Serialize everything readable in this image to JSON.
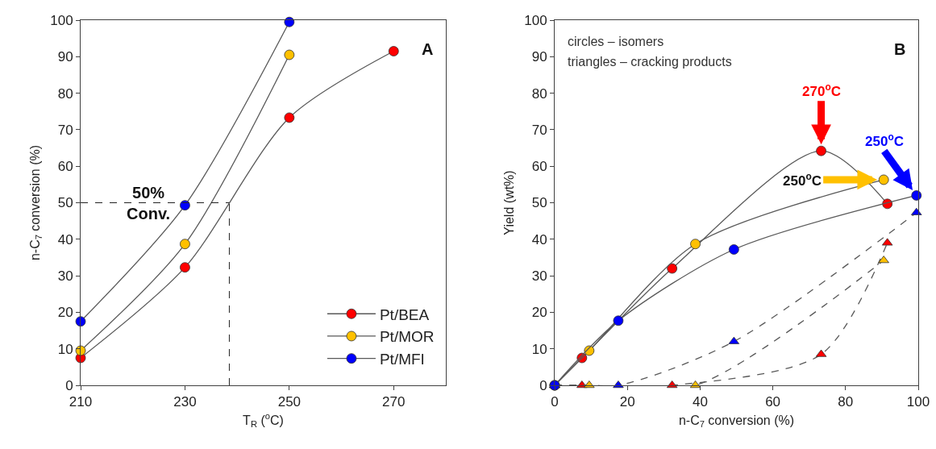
{
  "chart_data": [
    {
      "type": "line",
      "title": "A",
      "xlabel": "T$_{R}$ ($^{o}$C)",
      "ylabel": "n-C$_{7}$ conversion (%)",
      "xlim": [
        210,
        280
      ],
      "xticks": [
        210,
        230,
        250,
        270
      ],
      "ylim": [
        0,
        100
      ],
      "yticks": [
        0,
        10,
        20,
        30,
        40,
        50,
        60,
        70,
        80,
        90,
        100
      ],
      "grid": false,
      "legend": "bottom right",
      "marker": "circle",
      "series": [
        {
          "name": "Pt/BEA",
          "color": "#ff0000",
          "x": [
            210,
            230,
            250,
            270
          ],
          "values": [
            7.5,
            32.3,
            73.3,
            91.5
          ]
        },
        {
          "name": "Pt/MOR",
          "color": "#ffc000",
          "x": [
            210,
            230,
            250
          ],
          "values": [
            9.5,
            38.7,
            90.5
          ]
        },
        {
          "name": "Pt/MFI",
          "color": "#0000ff",
          "x": [
            210,
            230,
            250
          ],
          "values": [
            17.5,
            49.3,
            99.5
          ]
        }
      ],
      "ref_lines": [
        {
          "axis": "y",
          "value": 50,
          "line_style": "dashed"
        },
        {
          "axis": "x",
          "value": 238.5,
          "line_style": "dashed"
        }
      ],
      "annotations": [
        {
          "text": "50%\nConv.",
          "x": 223,
          "y": 50
        }
      ]
    },
    {
      "type": "line",
      "title": "B",
      "xlabel": "n-C$_{7}$ conversion (%)",
      "ylabel": "Yield (wt%)",
      "xlim": [
        0,
        100
      ],
      "xticks": [
        0,
        20,
        40,
        60,
        80,
        100
      ],
      "ylim": [
        0,
        100
      ],
      "yticks": [
        0,
        10,
        20,
        30,
        40,
        50,
        60,
        70,
        80,
        90,
        100
      ],
      "grid": false,
      "legend": false,
      "series": [
        {
          "color": "#ff0000",
          "marker": "triangle",
          "line_style": "dashed",
          "x": [
            0,
            7.5,
            32.3,
            73.3,
            91.5
          ],
          "values": [
            0,
            0,
            0,
            8.5,
            39
          ]
        },
        {
          "color": "#ffc000",
          "marker": "triangle",
          "line_style": "dashed",
          "x": [
            0,
            9.5,
            38.7,
            90.5
          ],
          "values": [
            0,
            0,
            0,
            34.2
          ]
        },
        {
          "color": "#0000ff",
          "marker": "triangle",
          "line_style": "dashed",
          "x": [
            0,
            17.5,
            49.3,
            99.5
          ],
          "values": [
            0,
            0,
            12,
            47.3
          ]
        },
        {
          "color": "#ff0000",
          "marker": "circle",
          "line_style": "solid",
          "x": [
            0,
            7.5,
            32.3,
            73.3,
            91.5
          ],
          "values": [
            0,
            7.5,
            32,
            64.2,
            49.7
          ]
        },
        {
          "color": "#ffc000",
          "marker": "circle",
          "line_style": "solid",
          "x": [
            0,
            9.5,
            38.7,
            90.5
          ],
          "values": [
            0,
            9.5,
            38.7,
            56.3
          ]
        },
        {
          "color": "#0000ff",
          "marker": "circle",
          "line_style": "solid",
          "x": [
            0,
            17.5,
            49.3,
            99.5
          ],
          "values": [
            0,
            17.7,
            37.2,
            52
          ]
        }
      ],
      "annotations": [
        "circles – isomers",
        "triangles – cracking products",
        {
          "text": "270$^{o}$C",
          "x": 73.3,
          "y": 64.2
        },
        {
          "text": "250$^{o}$C",
          "x": 90.5,
          "y": 56.3
        },
        {
          "text": "250$^{o}$C",
          "x": 99.5,
          "y": 52
        }
      ]
    }
  ]
}
